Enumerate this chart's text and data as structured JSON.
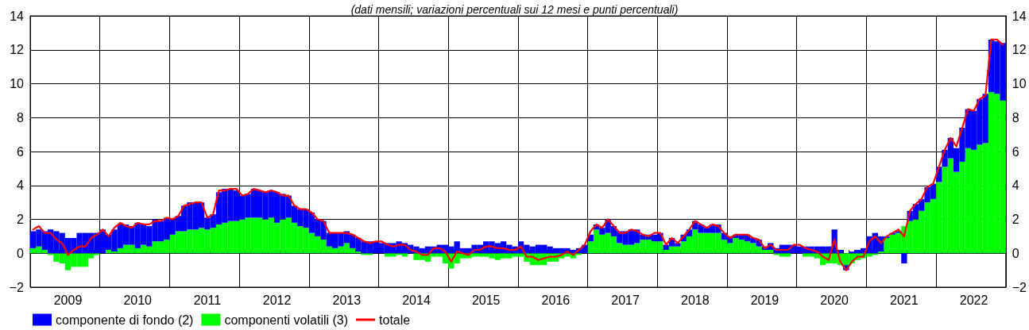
{
  "chart_data": {
    "type": "bar",
    "subtitle": "(dati mensili; variazioni percentuali sui 12 mesi e punti percentuali)",
    "categories": [
      null,
      null,
      null,
      null,
      null,
      null,
      "2009",
      null,
      null,
      null,
      null,
      null,
      null,
      null,
      null,
      null,
      null,
      null,
      "2010",
      null,
      null,
      null,
      null,
      null,
      null,
      null,
      null,
      null,
      null,
      null,
      "2011",
      null,
      null,
      null,
      null,
      null,
      null,
      null,
      null,
      null,
      null,
      null,
      "2012",
      null,
      null,
      null,
      null,
      null,
      null,
      null,
      null,
      null,
      null,
      null,
      "2013",
      null,
      null,
      null,
      null,
      null,
      null,
      null,
      null,
      null,
      null,
      null,
      "2014",
      null,
      null,
      null,
      null,
      null,
      null,
      null,
      null,
      null,
      null,
      null,
      "2015",
      null,
      null,
      null,
      null,
      null,
      null,
      null,
      null,
      null,
      null,
      null,
      "2016",
      null,
      null,
      null,
      null,
      null,
      null,
      null,
      null,
      null,
      null,
      null,
      "2017",
      null,
      null,
      null,
      null,
      null,
      null,
      null,
      null,
      null,
      null,
      null,
      "2018",
      null,
      null,
      null,
      null,
      null,
      null,
      null,
      null,
      null,
      null,
      null,
      "2019",
      null,
      null,
      null,
      null,
      null,
      null,
      null,
      null,
      null,
      null,
      null,
      "2020",
      null,
      null,
      null,
      null,
      null,
      null,
      null,
      null,
      null,
      null,
      null,
      "2021",
      null,
      null,
      null,
      null,
      null,
      null,
      null,
      null,
      null,
      null,
      null,
      "2022",
      null,
      null,
      null,
      null,
      null
    ],
    "series": [
      {
        "name": "componenti volatili (3)",
        "color": "#00ff00",
        "values": [
          0.3,
          0.4,
          0.2,
          -0.1,
          -0.5,
          -0.6,
          -1.0,
          -0.8,
          -0.8,
          -0.8,
          -0.3,
          -0.1,
          0,
          0.2,
          0.1,
          0.3,
          0.5,
          0.5,
          0.3,
          0.5,
          0.4,
          0.7,
          0.7,
          0.8,
          1.1,
          1.3,
          1.3,
          1.4,
          1.4,
          1.5,
          1.4,
          1.5,
          1.7,
          1.8,
          1.9,
          1.9,
          2.0,
          2.1,
          2.1,
          2.1,
          2.0,
          2.1,
          1.8,
          2.0,
          2.1,
          1.8,
          1.6,
          1.5,
          1.2,
          1.0,
          0.8,
          0.4,
          0.3,
          0.4,
          0.6,
          0.3,
          0.1,
          -0.1,
          -0.1,
          0,
          0,
          -0.2,
          -0.2,
          -0.1,
          -0.2,
          0,
          -0.4,
          -0.4,
          -0.5,
          -0.2,
          -0.2,
          -0.6,
          -0.9,
          -0.6,
          -0.3,
          -0.3,
          -0.2,
          -0.2,
          -0.2,
          -0.3,
          -0.4,
          -0.3,
          -0.3,
          -0.2,
          -0.2,
          -0.5,
          -0.7,
          -0.7,
          -0.7,
          -0.5,
          -0.5,
          -0.3,
          -0.2,
          -0.3,
          -0.1,
          0,
          0.7,
          1.4,
          1.1,
          1.2,
          1.0,
          0.6,
          0.5,
          0.5,
          0.6,
          0.8,
          0.8,
          0.7,
          0.7,
          0.2,
          0.4,
          0.4,
          0.7,
          1.0,
          1.4,
          1.2,
          1.2,
          1.2,
          1.2,
          0.8,
          0.6,
          0.9,
          0.8,
          0.7,
          0.6,
          0.4,
          0.2,
          0.2,
          -0.1,
          -0.2,
          -0.2,
          0,
          0,
          -0.2,
          -0.2,
          -0.3,
          -0.7,
          -0.6,
          -0.6,
          -0.7,
          -0.7,
          -0.6,
          -0.4,
          -0.3,
          -0.2,
          -0.1,
          0.1,
          0.9,
          1.1,
          1.2,
          1.6,
          1.9,
          2.0,
          2.5,
          3.0,
          3.2,
          4.2,
          5.1,
          5.6,
          4.8,
          5.4,
          6.2,
          6.1,
          6.4,
          6.5,
          9.5,
          9.4,
          9.0
        ]
      },
      {
        "name": "componente di fondo (2)",
        "color": "#0000ff",
        "values": [
          1.0,
          1.0,
          1.1,
          1.4,
          1.3,
          1.2,
          0.9,
          0.9,
          1.2,
          1.2,
          1.2,
          1.2,
          1.4,
          0.9,
          1.3,
          1.4,
          1.2,
          1.1,
          1.5,
          1.2,
          1.2,
          1.3,
          1.2,
          1.3,
          0.9,
          0.9,
          1.5,
          1.6,
          1.6,
          1.5,
          0.7,
          0.8,
          1.9,
          2.0,
          1.9,
          1.8,
          1.4,
          1.4,
          1.7,
          1.6,
          1.6,
          1.6,
          1.8,
          1.5,
          1.3,
          1.0,
          1.0,
          1.1,
          1.2,
          1.0,
          1.1,
          0.8,
          0.9,
          0.8,
          0.7,
          0.8,
          0.8,
          0.7,
          0.7,
          0.7,
          0.6,
          0.6,
          0.6,
          0.7,
          0.6,
          0.5,
          0.4,
          0.3,
          0.4,
          0.4,
          0.5,
          0.5,
          0.4,
          0.7,
          0.3,
          0.3,
          0.5,
          0.5,
          0.7,
          0.7,
          0.6,
          0.7,
          0.5,
          0.4,
          0.7,
          0.5,
          0.4,
          0.5,
          0.5,
          0.4,
          0.3,
          0.3,
          0.3,
          0.2,
          0.3,
          0.5,
          0.4,
          0.3,
          0.4,
          0.8,
          0.6,
          0.7,
          0.8,
          0.9,
          0.8,
          0.3,
          0.3,
          0.4,
          0.5,
          0.3,
          0.5,
          0.2,
          0.4,
          0.4,
          0.5,
          0.5,
          0.3,
          0.5,
          0.5,
          0.4,
          0.4,
          0.2,
          0.3,
          0.4,
          0.3,
          0.4,
          0.2,
          0.4,
          0.3,
          0.5,
          0.5,
          0.5,
          0.4,
          0.4,
          0.4,
          0.4,
          0.4,
          0.4,
          1.4,
          0.2,
          -0.3,
          0.1,
          0.2,
          0.3,
          1.0,
          1.2,
          0.9,
          0.1,
          0.1,
          0.1,
          -0.6,
          0.6,
          0.9,
          0.7,
          0.9,
          0.9,
          0.9,
          1.0,
          1.2,
          1.4,
          2.0,
          2.3,
          2.3,
          2.7,
          2.9,
          3.1,
          3.1,
          3.4
        ]
      },
      {
        "name": "totale",
        "type": "line",
        "color": "#ff0000",
        "values": [
          1.4,
          1.6,
          1.2,
          1.2,
          0.8,
          0.6,
          -0.1,
          0.2,
          0.4,
          0.4,
          0.9,
          1.1,
          1.4,
          1.0,
          1.5,
          1.8,
          1.6,
          1.5,
          1.8,
          1.7,
          1.7,
          1.9,
          1.9,
          2.1,
          2.0,
          2.2,
          2.8,
          2.9,
          3.0,
          3.0,
          2.1,
          2.3,
          3.7,
          3.7,
          3.8,
          3.8,
          3.4,
          3.5,
          3.8,
          3.7,
          3.6,
          3.7,
          3.6,
          3.4,
          3.4,
          2.8,
          2.6,
          2.6,
          2.4,
          2.0,
          1.9,
          1.2,
          1.2,
          1.2,
          1.2,
          1.1,
          0.9,
          0.7,
          0.6,
          0.7,
          0.7,
          0.5,
          0.4,
          0.5,
          0.5,
          0.2,
          0.1,
          -0.1,
          -0.1,
          0.3,
          0.3,
          0.1,
          -0.5,
          0.1,
          0,
          -0.1,
          0.2,
          0.2,
          0.4,
          0.4,
          0.3,
          0.3,
          0.2,
          0.2,
          0.4,
          -0.2,
          -0.2,
          -0.4,
          -0.3,
          -0.2,
          -0.2,
          -0.1,
          0.1,
          -0.1,
          0.2,
          0.5,
          1.3,
          1.7,
          1.5,
          2.0,
          1.6,
          1.2,
          1.2,
          1.4,
          1.3,
          1.1,
          1.0,
          1.2,
          1.2,
          0.5,
          0.9,
          0.6,
          1.0,
          1.4,
          1.9,
          1.7,
          1.5,
          1.7,
          1.6,
          1.2,
          0.9,
          1.1,
          1.1,
          1.1,
          0.9,
          0.8,
          0.3,
          0.5,
          0.2,
          0.2,
          0.2,
          0.5,
          0.5,
          0.3,
          0.2,
          0.1,
          -0.2,
          -0.4,
          0.8,
          -0.5,
          -1.0,
          -0.5,
          -0.2,
          -0.2,
          0.7,
          1.0,
          0.6,
          1.0,
          1.2,
          1.4,
          1.0,
          2.5,
          2.9,
          3.2,
          3.9,
          4.1,
          5.1,
          6.1,
          6.8,
          6.3,
          7.4,
          8.5,
          8.4,
          9.1,
          9.3,
          12.6,
          12.6,
          12.3
        ]
      }
    ],
    "stacked": true,
    "marker": "none",
    "line_style": "solid",
    "grid": true,
    "legend": "bottom left",
    "ylim": [
      -2,
      14
    ],
    "yticks": [
      {
        "value": -2,
        "label": "−2"
      },
      0,
      2,
      4,
      6,
      8,
      10,
      12,
      14
    ],
    "y2lim": [
      -2,
      14
    ],
    "y2ticks": [
      {
        "value": -2,
        "label": "−2"
      },
      0,
      2,
      4,
      6,
      8,
      10,
      12,
      14
    ]
  }
}
